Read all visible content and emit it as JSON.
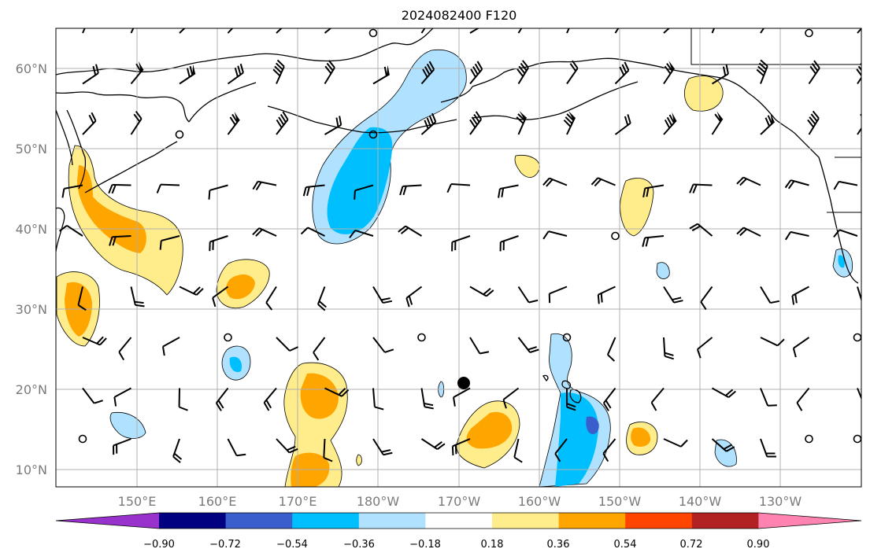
{
  "title": "2024082400 F120",
  "lat_labels": [
    "60°N",
    "50°N",
    "40°N",
    "30°N",
    "20°N",
    "10°N"
  ],
  "lon_labels": [
    "150°E",
    "160°E",
    "170°E",
    "180°W",
    "170°W",
    "160°W",
    "150°W",
    "140°W",
    "130°W"
  ],
  "colorbar": {
    "ticks": [
      "−0.90",
      "−0.72",
      "−0.54",
      "−0.36",
      "−0.18",
      "0.18",
      "0.36",
      "0.54",
      "0.72",
      "0.90"
    ],
    "colors": [
      "#9932cc",
      "#000080",
      "#3a5fcd",
      "#00bfff",
      "#b0e2ff",
      "#ffffff",
      "#ffec8b",
      "#ffa500",
      "#ff4500",
      "#b22222",
      "#ff83b0"
    ]
  },
  "colors": {
    "grid": "#b0b0b0",
    "axis_label": "#7a7a7a"
  },
  "storm_marker": {
    "lon": -169.5,
    "lat": 21
  }
}
